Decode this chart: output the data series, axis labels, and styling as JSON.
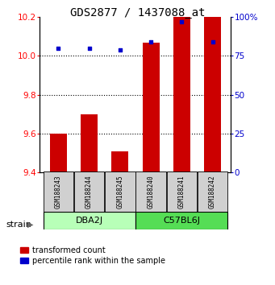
{
  "title": "GDS2877 / 1437088_at",
  "samples": [
    "GSM188243",
    "GSM188244",
    "GSM188245",
    "GSM188240",
    "GSM188241",
    "GSM188242"
  ],
  "transformed_counts": [
    9.6,
    9.7,
    9.51,
    10.07,
    10.2,
    10.2
  ],
  "percentile_ranks": [
    80,
    80,
    79,
    84,
    97,
    84
  ],
  "bar_bottom": 9.4,
  "ylim_left": [
    9.4,
    10.2
  ],
  "ylim_right": [
    0,
    100
  ],
  "right_ticks": [
    0,
    25,
    50,
    75,
    100
  ],
  "right_tick_labels": [
    "0",
    "25",
    "50",
    "75",
    "100%"
  ],
  "left_ticks": [
    9.4,
    9.6,
    9.8,
    10.0,
    10.2
  ],
  "bar_color": "#cc0000",
  "dot_color": "#0000cc",
  "bar_width": 0.55,
  "group1_color": "#b8ffb8",
  "group2_color": "#55dd55",
  "legend_red_label": "transformed count",
  "legend_blue_label": "percentile rank within the sample",
  "title_fontsize": 10,
  "tick_fontsize": 7.5,
  "sample_fontsize": 5.5,
  "group_fontsize": 8,
  "legend_fontsize": 7,
  "strain_fontsize": 8
}
